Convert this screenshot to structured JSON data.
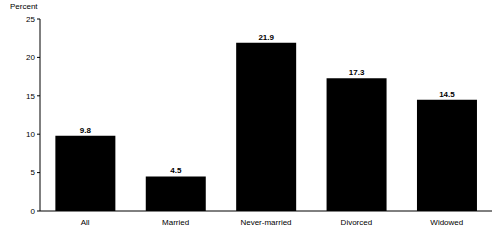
{
  "chart_data": {
    "type": "bar",
    "ylabel": "Percent",
    "categories": [
      "All",
      "Married",
      "Never-married",
      "Divorced",
      "Widowed"
    ],
    "values": [
      9.8,
      4.5,
      21.9,
      17.3,
      14.5
    ],
    "color": "#000000",
    "ylim": [
      0,
      25
    ],
    "yticks": [
      0,
      5,
      10,
      15,
      20,
      25
    ],
    "grid": false,
    "data_labels": true
  }
}
